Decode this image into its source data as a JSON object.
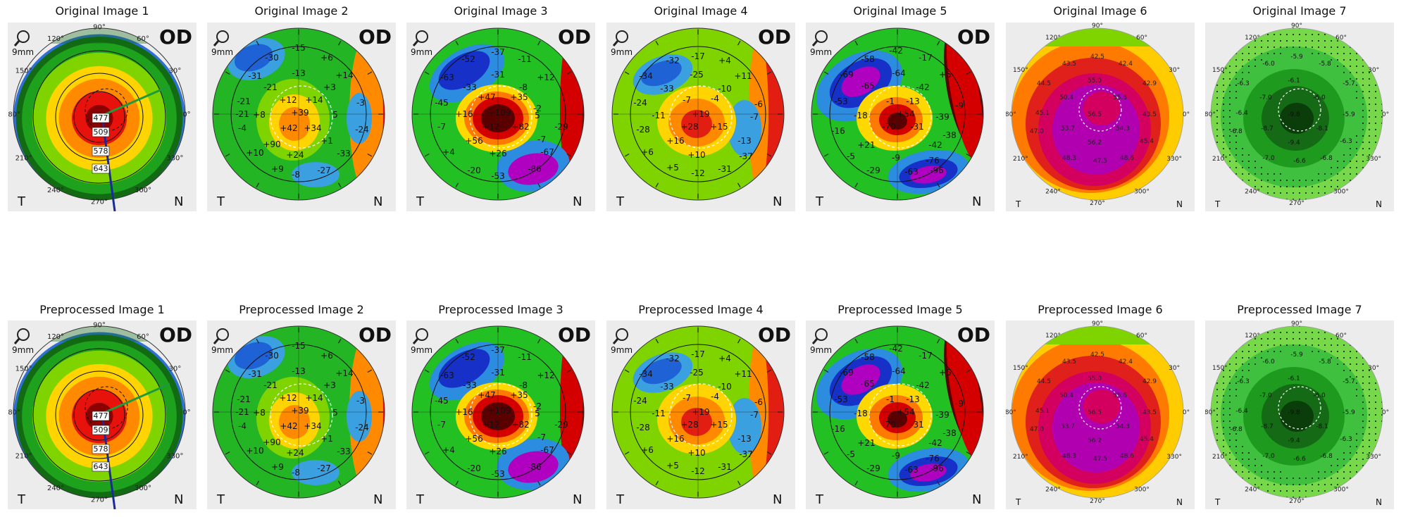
{
  "figure": {
    "rows": [
      {
        "panels": [
          {
            "title": "Original Image 1"
          },
          {
            "title": "Original Image 2"
          },
          {
            "title": "Original Image 3"
          },
          {
            "title": "Original Image 4"
          },
          {
            "title": "Original Image 5"
          },
          {
            "title": "Original Image 6"
          },
          {
            "title": "Original Image 7"
          }
        ]
      },
      {
        "panels": [
          {
            "title": "Preprocessed Image 1"
          },
          {
            "title": "Preprocessed Image 2"
          },
          {
            "title": "Preprocessed Image 3"
          },
          {
            "title": "Preprocessed Image 4"
          },
          {
            "title": "Preprocessed Image 5"
          },
          {
            "title": "Preprocessed Image 6"
          },
          {
            "title": "Preprocessed Image 7"
          }
        ]
      }
    ]
  },
  "maps": [
    {
      "kind": "pachymetry",
      "eye": "OD",
      "scale_label": "9mm",
      "temporal": "T",
      "nasal": "N",
      "palette": [
        "#8b0000",
        "#e8120c",
        "#ff8a00",
        "#ffd400",
        "#7fd400",
        "#1ea21e",
        "#126b12",
        "#2e6fd8"
      ],
      "degree_labels": [
        "90°",
        "120°",
        "150°",
        "180°",
        "210°",
        "240°",
        "270°",
        "300°",
        "330°",
        "0°",
        "30°",
        "60°"
      ],
      "thickness_labels": [
        "477",
        "509",
        "578",
        "643"
      ]
    },
    {
      "kind": "elevation",
      "eye": "OD",
      "scale_label": "9mm",
      "temporal": "T",
      "nasal": "N",
      "palette": [
        "#e8120c",
        "#ff8a00",
        "#ffd400",
        "#7fd400",
        "#23b523",
        "#3aa0e0",
        "#1f62d6"
      ],
      "values": [
        "-15",
        "-30",
        "+6",
        "-31",
        "-13",
        "+14",
        "-21",
        "-21",
        "+3",
        "+12",
        "+14",
        "-21",
        "-3",
        "+8",
        "+39",
        "5",
        "-4",
        "+42",
        "+34",
        "-24",
        "+90",
        "+1",
        "+10",
        "+24",
        "-33",
        "+9",
        "-27",
        "-8"
      ]
    },
    {
      "kind": "elevation",
      "eye": "OD",
      "scale_label": "9mm",
      "temporal": "T",
      "nasal": "N",
      "palette": [
        "#5a0000",
        "#d40000",
        "#ff7a00",
        "#ffd800",
        "#22c022",
        "#2c8ce0",
        "#1730c8",
        "#b000c0"
      ],
      "values": [
        "-37",
        "-52",
        "-11",
        "-63",
        "-31",
        "+12",
        "-33",
        "-8",
        "-45",
        "+47",
        "+35",
        "-2",
        "+16",
        "+109",
        "5",
        "-7",
        "+12",
        "+82",
        "-29",
        "+56",
        "-7",
        "+4",
        "+26",
        "-67",
        "-20",
        "-53",
        "-86"
      ]
    },
    {
      "kind": "elevation",
      "eye": "OD",
      "scale_label": "9mm",
      "temporal": "T",
      "nasal": "N",
      "palette": [
        "#8b0000",
        "#e21d12",
        "#ff8a00",
        "#ffd400",
        "#7fd400",
        "#23b523",
        "#3aa0e0",
        "#1f62d6"
      ],
      "values": [
        "-17",
        "-32",
        "+4",
        "-34",
        "-25",
        "+11",
        "-33",
        "-10",
        "-24",
        "-7",
        "-4",
        "-6",
        "-11",
        "+19",
        "-7",
        "+28",
        "+15",
        "-28",
        "+16",
        "-13",
        "+6",
        "+10",
        "-37",
        "+5",
        "-12",
        "-31"
      ]
    },
    {
      "kind": "elevation",
      "eye": "OD",
      "scale_label": "9mm",
      "temporal": "T",
      "nasal": "N",
      "palette": [
        "#5a0000",
        "#d40000",
        "#ff7a00",
        "#ffd800",
        "#22c022",
        "#2c8ce0",
        "#1730c8",
        "#b000c0"
      ],
      "values": [
        "-42",
        "-58",
        "-17",
        "-69",
        "-64",
        "+5",
        "-65",
        "-42",
        "-53",
        "-1",
        "-13",
        "-9",
        "-18",
        "+54",
        "-39",
        "-16",
        "-70",
        "-31",
        "-38",
        "+21",
        "-42",
        "-5",
        "-9",
        "-76",
        "-29",
        "-63",
        "-96"
      ]
    },
    {
      "kind": "axial-power",
      "temporal": "T",
      "nasal": "N",
      "palette": [
        "#b000b0",
        "#d40060",
        "#e0201a",
        "#ff7a00",
        "#ffcc00",
        "#7fd400",
        "#23b523"
      ],
      "degree_labels": [
        "90°",
        "120°",
        "150°",
        "180°",
        "210°",
        "240°",
        "270°",
        "300°",
        "330°",
        "0°",
        "30°",
        "60°"
      ],
      "values": [
        "42.5",
        "43.5",
        "42.4",
        "44.5",
        "55.0",
        "42.9",
        "50.4",
        "55.6",
        "45.1",
        "56.5",
        "43.5",
        "53.7",
        "54.3",
        "47.0",
        "56.2",
        "45.4",
        "48.3",
        "47.5",
        "48.6"
      ]
    },
    {
      "kind": "axial-power",
      "temporal": "T",
      "nasal": "N",
      "palette": [
        "#0a3d0a",
        "#156b15",
        "#1e9a1e",
        "#3fc03f",
        "#77d84a"
      ],
      "degree_labels": [
        "90°",
        "120°",
        "150°",
        "180°",
        "210°",
        "240°",
        "270°",
        "300°",
        "330°",
        "0°",
        "30°",
        "60°"
      ],
      "values": [
        "-5.9",
        "-6.0",
        "-5.8",
        "-6.3",
        "-6.1",
        "-5.7",
        "-7.0",
        "-6.0",
        "-6.4",
        "-9.8",
        "-5.9",
        "-8.7",
        "-8.1",
        "-6.8",
        "-9.4",
        "-6.3",
        "-7.0",
        "-6.6",
        "-6.8"
      ]
    }
  ]
}
